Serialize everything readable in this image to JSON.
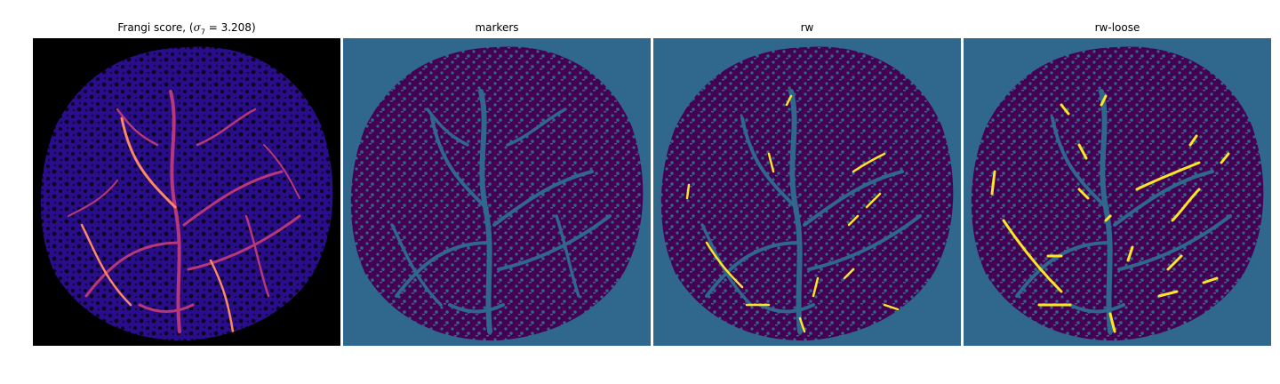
{
  "panels": [
    {
      "title_prefix": "Frangi score, (",
      "title_sigma": "σ",
      "title_sub": "7",
      "title_suffix": " = 3.208)",
      "colormap": "magma"
    },
    {
      "title": "markers",
      "colormap": "viridis"
    },
    {
      "title": "rw",
      "colormap": "viridis"
    },
    {
      "title": "rw-loose",
      "colormap": "viridis"
    }
  ],
  "colors": {
    "black": "#000000",
    "dark_purple": "#440154",
    "teal_blue": "#30678d",
    "yellow": "#fde725",
    "magma_purple": "#3b0f70",
    "magma_orange": "#fc8961",
    "magma_pink": "#b73779"
  }
}
